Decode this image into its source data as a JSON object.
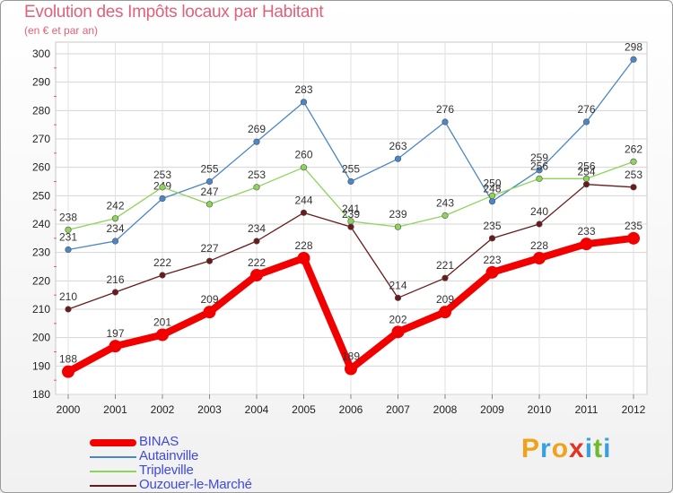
{
  "title": "Evolution des Impôts locaux par Habitant",
  "subtitle": "(en € et par an)",
  "brand": {
    "text": "Proxiti",
    "letters": [
      {
        "ch": "P",
        "color": "#f0a21a"
      },
      {
        "ch": "r",
        "color": "#39a0de"
      },
      {
        "ch": "o",
        "color": "#f0a21a"
      },
      {
        "ch": "x",
        "color": "#e23323"
      },
      {
        "ch": "i",
        "color": "#39a0de"
      },
      {
        "ch": "t",
        "color": "#6cbb2f"
      },
      {
        "ch": "i",
        "color": "#39a0de"
      }
    ]
  },
  "chart_data": {
    "type": "line",
    "title": "Evolution des Impôts locaux par Habitant",
    "subtitle": "(en € et par an)",
    "xlabel": "",
    "ylabel": "",
    "x": [
      "2000",
      "2001",
      "2002",
      "2003",
      "2004",
      "2005",
      "2006",
      "2007",
      "2008",
      "2009",
      "2010",
      "2011",
      "2012"
    ],
    "ylim": [
      180,
      300
    ],
    "yticks": [
      180,
      190,
      200,
      210,
      220,
      230,
      240,
      250,
      260,
      270,
      280,
      290,
      300
    ],
    "grid": true,
    "legend_position": "bottom-left",
    "series": [
      {
        "name": "Autainville",
        "color": "#4a86c8",
        "values": [
          231,
          234,
          249,
          255,
          269,
          283,
          255,
          263,
          276,
          248,
          259,
          276,
          298
        ]
      },
      {
        "name": "Tripleville",
        "color": "#8ed45a",
        "values": [
          238,
          242,
          253,
          247,
          253,
          260,
          241,
          239,
          243,
          250,
          256,
          256,
          262
        ]
      },
      {
        "name": "Ouzouer-le-Marché",
        "color": "#6a1a1a",
        "values": [
          210,
          216,
          222,
          227,
          234,
          244,
          239,
          214,
          221,
          235,
          240,
          254,
          253
        ]
      },
      {
        "name": "BINAS",
        "color": "#f20000",
        "values": [
          188,
          197,
          201,
          209,
          222,
          228,
          189,
          202,
          209,
          223,
          228,
          233,
          235
        ]
      }
    ],
    "legend": [
      {
        "name": "BINAS",
        "color": "#f20000",
        "width": 8
      },
      {
        "name": "Autainville",
        "color": "#4a86c8",
        "width": 1.5
      },
      {
        "name": "Tripleville",
        "color": "#8ed45a",
        "width": 1.5
      },
      {
        "name": "Ouzouer-le-Marché",
        "color": "#6a1a1a",
        "width": 1.5
      }
    ]
  }
}
